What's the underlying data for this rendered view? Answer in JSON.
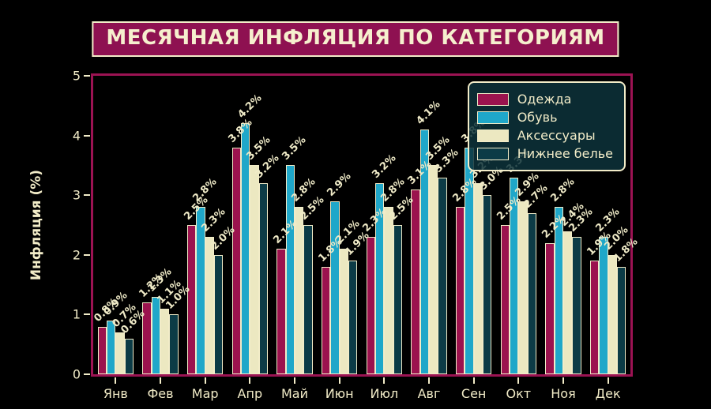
{
  "title": "МЕСЯЧНАЯ ИНФЛЯЦИЯ ПО КАТЕГОРИЯМ",
  "chart_data": {
    "type": "bar",
    "title": "МЕСЯЧНАЯ ИНФЛЯЦИЯ ПО КАТЕГОРИЯМ",
    "xlabel": "",
    "ylabel": "Инфляция (%)",
    "categories": [
      "Янв",
      "Фев",
      "Мар",
      "Апр",
      "Май",
      "Июн",
      "Июл",
      "Авг",
      "Сен",
      "Окт",
      "Ноя",
      "Дек"
    ],
    "series": [
      {
        "name": "Одежда",
        "color": "#9b134e",
        "values": [
          0.8,
          1.2,
          2.5,
          3.8,
          2.1,
          1.8,
          2.3,
          3.1,
          2.8,
          2.5,
          2.2,
          1.9
        ]
      },
      {
        "name": "Обувь",
        "color": "#1fa7c9",
        "values": [
          0.9,
          1.3,
          2.8,
          4.2,
          3.5,
          2.9,
          3.2,
          4.1,
          3.8,
          3.3,
          2.8,
          2.3
        ]
      },
      {
        "name": "Аксессуары",
        "color": "#ece8c1",
        "values": [
          0.7,
          1.1,
          2.3,
          3.5,
          2.8,
          2.1,
          2.8,
          3.5,
          3.2,
          2.9,
          2.4,
          2.0
        ]
      },
      {
        "name": "Нижнее белье",
        "color": "#0c3b46",
        "values": [
          0.6,
          1.0,
          2.0,
          3.2,
          2.5,
          1.9,
          2.5,
          3.3,
          3.0,
          2.7,
          2.3,
          1.8
        ]
      }
    ],
    "ylim": [
      0,
      5
    ],
    "yticks": [
      0,
      1,
      2,
      3,
      4,
      5
    ],
    "grid": false,
    "legend_position": "upper right",
    "value_label_suffix": "%"
  },
  "colors": {
    "background": "#000000",
    "text_cream": "#f2ecc8",
    "title_bg": "#8e1151",
    "plot_spine": "#9c1353",
    "legend_bg": "#0d333b",
    "bar_edge": "#f2ecc8"
  }
}
